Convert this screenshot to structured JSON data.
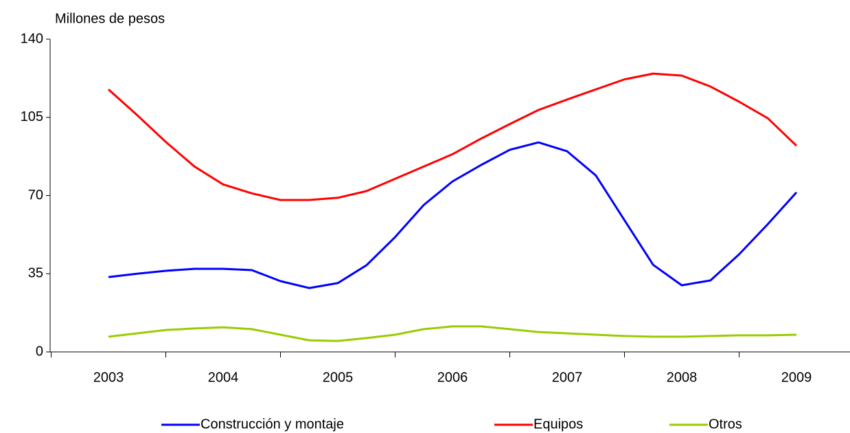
{
  "chart_data": {
    "type": "line",
    "y_label": "Millones de pesos",
    "categories": [
      "2003",
      null,
      null,
      null,
      "2004",
      null,
      null,
      null,
      "2005",
      null,
      null,
      null,
      "2006",
      null,
      null,
      null,
      "2007",
      null,
      null,
      null,
      "2008",
      null,
      null,
      null,
      "2009"
    ],
    "series": [
      {
        "name": "Construcción y montaje",
        "color": "#0000ff",
        "values": [
          33.5,
          35,
          36.3,
          37.2,
          37.2,
          36.6,
          31.7,
          28.6,
          30.8,
          38.8,
          51.4,
          65.8,
          76.3,
          83.7,
          90.5,
          93.8,
          89.8,
          79,
          59,
          39,
          29.8,
          32,
          43.7,
          57.2,
          71.4
        ]
      },
      {
        "name": "Equipos",
        "color": "#ff0000",
        "values": [
          117.5,
          106,
          94,
          83,
          75,
          71,
          68,
          68,
          69,
          72,
          77.5,
          83,
          88.5,
          95.5,
          102,
          108.3,
          113,
          117.5,
          122,
          124.6,
          123.7,
          118.8,
          112,
          104.6,
          92.3
        ]
      },
      {
        "name": "Otros",
        "color": "#99cc00",
        "values": [
          6.8,
          8.3,
          9.8,
          10.5,
          11,
          10.2,
          7.7,
          5.2,
          4.9,
          6.2,
          7.7,
          10.2,
          11.4,
          11.4,
          10.2,
          8.9,
          8.3,
          7.7,
          7.1,
          6.8,
          6.8,
          7.1,
          7.4,
          7.4,
          7.7
        ]
      }
    ],
    "ylim": [
      0,
      140
    ],
    "yticks": [
      0,
      35,
      70,
      105,
      140
    ],
    "grid": false
  }
}
